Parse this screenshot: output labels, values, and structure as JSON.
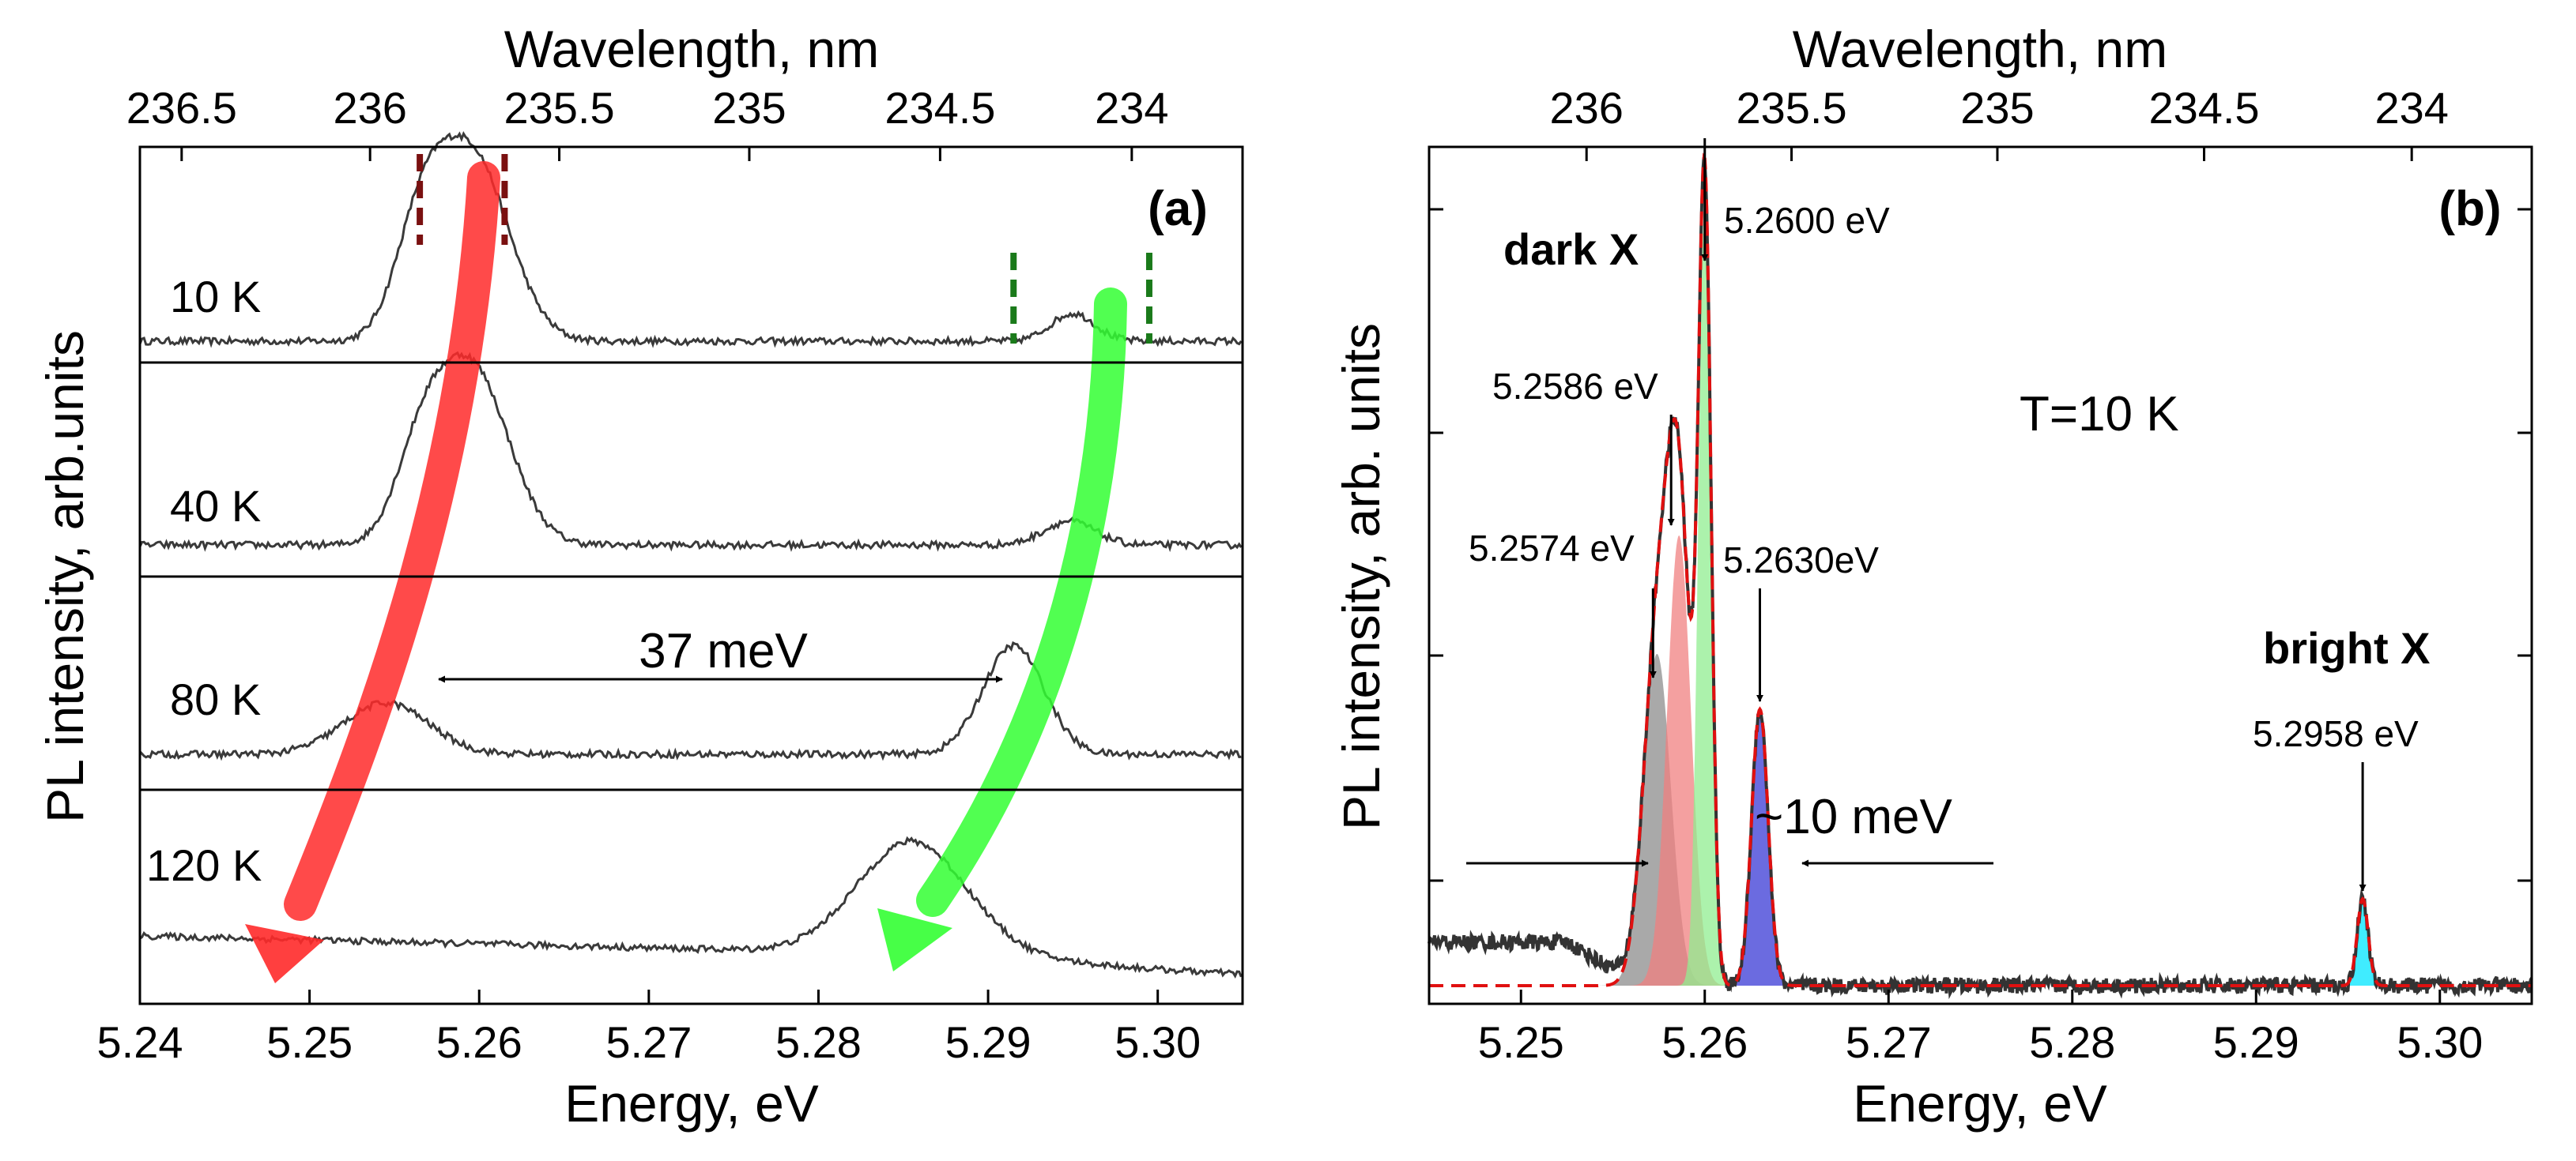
{
  "chart_data": [
    {
      "type": "line",
      "panel_label": "(a)",
      "xlabel": "Energy, eV",
      "ylabel": "PL intensity, arb.units",
      "top_axis_label": "Wavelength, nm",
      "xlim": [
        5.24,
        5.305
      ],
      "x_ticks": [
        5.24,
        5.25,
        5.26,
        5.27,
        5.28,
        5.29,
        5.3
      ],
      "x_tick_labels": [
        "5.24",
        "5.25",
        "5.26",
        "5.27",
        "5.28",
        "5.29",
        "5.30"
      ],
      "top_ticks_nm": [
        236.5,
        236,
        235.5,
        235,
        234.5,
        234
      ],
      "top_tick_labels": [
        "236.5",
        "236",
        "235.5",
        "235",
        "234.5",
        "234"
      ],
      "series": [
        {
          "name": "10 K",
          "peaks": [
            {
              "energy": 5.2595,
              "height": 0.95,
              "width": 0.0022
            },
            {
              "energy": 5.2565,
              "height": 0.45,
              "width": 0.0015
            },
            {
              "energy": 5.295,
              "height": 0.14,
              "width": 0.0013
            }
          ]
        },
        {
          "name": "40 K",
          "peaks": [
            {
              "energy": 5.2595,
              "height": 0.9,
              "width": 0.0022
            },
            {
              "energy": 5.2565,
              "height": 0.35,
              "width": 0.0015
            },
            {
              "energy": 5.2948,
              "height": 0.12,
              "width": 0.0015
            }
          ]
        },
        {
          "name": "80 K",
          "peaks": [
            {
              "energy": 5.2545,
              "height": 0.26,
              "width": 0.0025
            },
            {
              "energy": 5.2915,
              "height": 0.55,
              "width": 0.0018
            }
          ]
        },
        {
          "name": "120 K",
          "peaks": [
            {
              "energy": 5.2855,
              "height": 0.62,
              "width": 0.0032
            }
          ]
        }
      ],
      "annotations": {
        "splitting": "37 meV"
      }
    },
    {
      "type": "line",
      "panel_label": "(b)",
      "xlabel": "Energy, eV",
      "ylabel": "PL intensity, arb. units",
      "top_axis_label": "Wavelength, nm",
      "xlim": [
        5.245,
        5.305
      ],
      "x_ticks": [
        5.25,
        5.26,
        5.27,
        5.28,
        5.29,
        5.3
      ],
      "x_tick_labels": [
        "5.25",
        "5.26",
        "5.27",
        "5.28",
        "5.29",
        "5.30"
      ],
      "top_ticks_nm": [
        236,
        235.5,
        235,
        234.5,
        234
      ],
      "top_tick_labels": [
        "236",
        "235.5",
        "235",
        "234.5",
        "234"
      ],
      "temperature": "T=10 K",
      "components": [
        {
          "energy": 5.2574,
          "label": "5.2574 eV",
          "color": "#8c8c8c",
          "height": 0.42,
          "width": 0.00075
        },
        {
          "energy": 5.2586,
          "label": "5.2586 eV",
          "color": "#f08080",
          "height": 0.57,
          "width": 0.00065
        },
        {
          "energy": 5.26,
          "label": "5.2600 eV",
          "color": "#90ee90",
          "height": 0.99,
          "width": 0.00035
        },
        {
          "energy": 5.263,
          "label": "5.2630eV",
          "color": "#3a3ad6",
          "height": 0.35,
          "width": 0.00045
        },
        {
          "energy": 5.2958,
          "label": "5.2958 eV",
          "color": "#00e5ff",
          "height": 0.11,
          "width": 0.0003
        }
      ],
      "annotations": {
        "dark": "dark X",
        "bright": "bright X",
        "width": "~10 meV"
      }
    }
  ]
}
